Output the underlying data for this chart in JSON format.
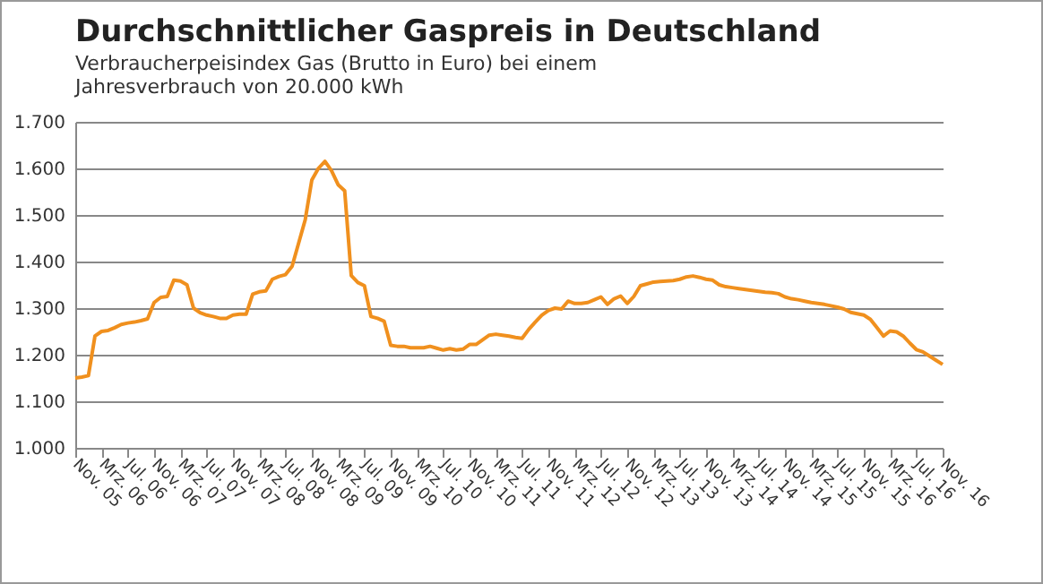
{
  "chart_data": {
    "type": "line",
    "title": "Durchschnittlicher Gaspreis in Deutschland",
    "subtitle": "Verbraucherpeisindex Gas (Brutto in Euro) bei einem Jahresverbrauch von 20.000 kWh",
    "categories": [
      "Nov. 05",
      null,
      null,
      null,
      "Mrz. 06",
      null,
      null,
      null,
      "Jul. 06",
      null,
      null,
      null,
      "Nov. 06",
      null,
      null,
      null,
      "Mrz. 07",
      null,
      null,
      null,
      "Jul. 07",
      null,
      null,
      null,
      "Nov. 07",
      null,
      null,
      null,
      "Mrz. 08",
      null,
      null,
      null,
      "Jul. 08",
      null,
      null,
      null,
      "Nov. 08",
      null,
      null,
      null,
      "Mrz. 09",
      null,
      null,
      null,
      "Jul. 09",
      null,
      null,
      null,
      "Nov. 09",
      null,
      null,
      null,
      "Mrz. 10",
      null,
      null,
      null,
      "Jul. 10",
      null,
      null,
      null,
      "Nov. 10",
      null,
      null,
      null,
      "Mrz. 11",
      null,
      null,
      null,
      "Jul. 11",
      null,
      null,
      null,
      "Nov. 11",
      null,
      null,
      null,
      "Mrz. 12",
      null,
      null,
      null,
      "Jul. 12",
      null,
      null,
      null,
      "Nov. 12",
      null,
      null,
      null,
      "Mrz. 13",
      null,
      null,
      null,
      "Jul. 13",
      null,
      null,
      null,
      "Nov. 13",
      null,
      null,
      null,
      "Mrz. 14",
      null,
      null,
      null,
      "Jul. 14",
      null,
      null,
      null,
      "Nov. 14",
      null,
      null,
      null,
      "Mrz. 15",
      null,
      null,
      null,
      "Jul. 15",
      null,
      null,
      null,
      "Nov. 15",
      null,
      null,
      null,
      "Mrz. 16",
      null,
      null,
      null,
      "Jul. 16",
      null,
      null,
      null,
      "Nov. 16"
    ],
    "series": [
      {
        "color": "#f0901e",
        "values": [
          1150,
          1152,
          1155,
          1240,
          1250,
          1252,
          1258,
          1265,
          1268,
          1270,
          1273,
          1277,
          1312,
          1323,
          1325,
          1360,
          1358,
          1350,
          1300,
          1290,
          1285,
          1282,
          1278,
          1278,
          1285,
          1287,
          1287,
          1330,
          1335,
          1337,
          1362,
          1368,
          1372,
          1390,
          1440,
          1490,
          1575,
          1600,
          1615,
          1595,
          1565,
          1552,
          1370,
          1355,
          1348,
          1282,
          1278,
          1272,
          1220,
          1218,
          1218,
          1215,
          1215,
          1215,
          1218,
          1214,
          1210,
          1213,
          1210,
          1212,
          1222,
          1222,
          1232,
          1242,
          1244,
          1242,
          1240,
          1237,
          1235,
          1254,
          1270,
          1285,
          1295,
          1300,
          1298,
          1315,
          1310,
          1310,
          1312,
          1318,
          1324,
          1308,
          1320,
          1326,
          1310,
          1325,
          1348,
          1352,
          1356,
          1357,
          1358,
          1359,
          1362,
          1367,
          1369,
          1366,
          1362,
          1360,
          1350,
          1346,
          1344,
          1342,
          1340,
          1338,
          1336,
          1334,
          1333,
          1331,
          1324,
          1320,
          1318,
          1315,
          1312,
          1310,
          1308,
          1305,
          1302,
          1298,
          1291,
          1288,
          1285,
          1276,
          1258,
          1240,
          1251,
          1249,
          1240,
          1225,
          1211,
          1206,
          1197,
          1188,
          1179
        ]
      }
    ],
    "ylim": [
      1000,
      1700
    ],
    "yticks": [
      {
        "value": 1000,
        "label": "1.000"
      },
      {
        "value": 1100,
        "label": "1.100"
      },
      {
        "value": 1200,
        "label": "1.200"
      },
      {
        "value": 1300,
        "label": "1.300"
      },
      {
        "value": 1400,
        "label": "1.400"
      },
      {
        "value": 1500,
        "label": "1.500"
      },
      {
        "value": 1600,
        "label": "1.600"
      },
      {
        "value": 1700,
        "label": "1.700"
      }
    ],
    "grid": "y",
    "marker": "none",
    "line_style": "solid"
  }
}
